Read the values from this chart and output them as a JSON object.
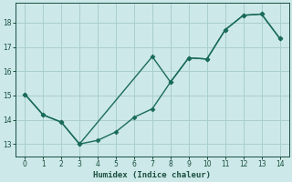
{
  "xlabel": "Humidex (Indice chaleur)",
  "bg_color": "#cce8e8",
  "line_color": "#1a6b5a",
  "grid_color": "#aacece",
  "xlim": [
    -0.5,
    14.5
  ],
  "ylim": [
    12.5,
    18.8
  ],
  "xticks": [
    0,
    1,
    2,
    3,
    4,
    5,
    6,
    7,
    8,
    9,
    10,
    11,
    12,
    13,
    14
  ],
  "yticks": [
    13,
    14,
    15,
    16,
    17,
    18
  ],
  "line1_x": [
    0,
    1,
    2,
    3,
    4,
    5,
    6,
    7,
    8,
    9,
    10,
    11,
    12,
    13,
    14
  ],
  "line1_y": [
    15.05,
    14.2,
    13.9,
    13.0,
    13.15,
    13.5,
    14.1,
    14.45,
    15.55,
    16.55,
    16.5,
    17.7,
    18.3,
    18.35,
    17.35
  ],
  "line2_x": [
    0,
    1,
    2,
    3,
    7,
    8,
    9,
    10,
    11,
    12,
    13,
    14
  ],
  "line2_y": [
    15.05,
    14.2,
    13.9,
    13.0,
    16.6,
    15.55,
    16.55,
    16.5,
    17.7,
    18.3,
    18.35,
    17.35
  ]
}
